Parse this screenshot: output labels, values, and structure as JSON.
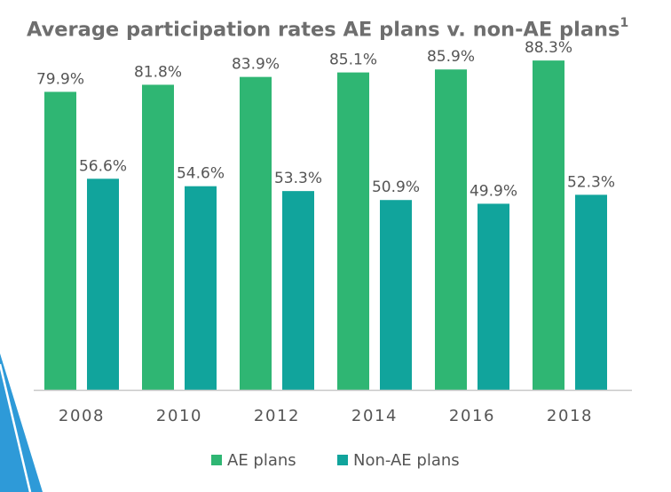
{
  "page": {
    "title": "Average participation rates AE plans v. non-AE plans",
    "title_footnote": "1"
  },
  "colors": {
    "ae": "#2fb673",
    "non_ae": "#11a49c",
    "axis": "#c8c8c8",
    "decor_blue": "#2e9ad8"
  },
  "chart_data": {
    "type": "bar",
    "title": "Average participation rates AE plans v. non-AE plans",
    "categories": [
      "2008",
      "2010",
      "2012",
      "2014",
      "2016",
      "2018"
    ],
    "series": [
      {
        "name": "AE plans",
        "values": [
          79.9,
          81.8,
          83.9,
          85.1,
          85.9,
          88.3
        ],
        "labels": [
          "79.9%",
          "81.8%",
          "83.9%",
          "85.1%",
          "85.9%",
          "88.3%"
        ]
      },
      {
        "name": "Non-AE plans",
        "values": [
          56.6,
          54.6,
          53.3,
          50.9,
          49.9,
          52.3
        ],
        "labels": [
          "56.6%",
          "54.6%",
          "53.3%",
          "50.9%",
          "49.9%",
          "52.3%"
        ]
      }
    ],
    "xlabel": "",
    "ylabel": "",
    "ylim": [
      0,
      100
    ],
    "grid": false,
    "legend_position": "bottom-center"
  }
}
